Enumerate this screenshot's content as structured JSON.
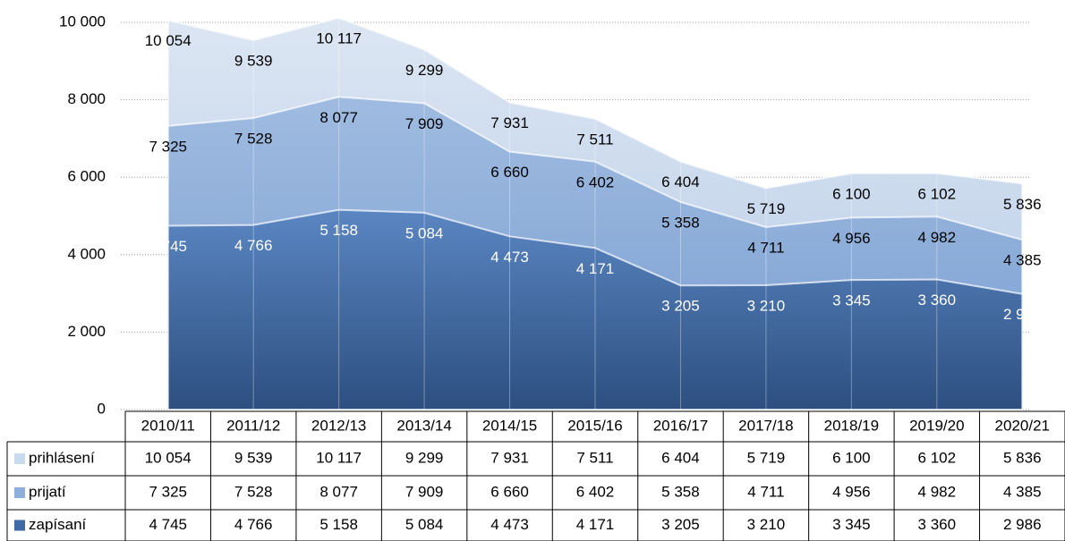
{
  "chart_data": {
    "type": "area",
    "categories": [
      "2010/11",
      "2011/12",
      "2012/13",
      "2013/14",
      "2014/15",
      "2015/16",
      "2016/17",
      "2017/18",
      "2018/19",
      "2019/20",
      "2020/21"
    ],
    "series": [
      {
        "name": "prihlásení",
        "color": "#c9d9ee",
        "values": [
          10054,
          9539,
          10117,
          9299,
          7931,
          7511,
          6404,
          5719,
          6100,
          6102,
          5836
        ],
        "value_labels": [
          "10 054",
          "9 539",
          "10 117",
          "9 299",
          "7 931",
          "7 511",
          "6 404",
          "5 719",
          "6 100",
          "6 102",
          "5 836"
        ]
      },
      {
        "name": "prijatí",
        "color": "#8eaedb",
        "values": [
          7325,
          7528,
          8077,
          7909,
          6660,
          6402,
          5358,
          4711,
          4956,
          4982,
          4385
        ],
        "value_labels": [
          "7 325",
          "7 528",
          "8 077",
          "7 909",
          "6 660",
          "6 402",
          "5 358",
          "4 711",
          "4 956",
          "4 982",
          "4 385"
        ]
      },
      {
        "name": "zapísaní",
        "color": "#3f6aa6",
        "values": [
          4745,
          4766,
          5158,
          5084,
          4473,
          4171,
          3205,
          3210,
          3345,
          3360,
          2986
        ],
        "value_labels": [
          "4 745",
          "4 766",
          "5 158",
          "5 084",
          "4 473",
          "4 171",
          "3 205",
          "3 210",
          "3 345",
          "3 360",
          "2 986"
        ]
      }
    ],
    "ylim": [
      0,
      10000
    ],
    "yticks": [
      0,
      {
        "value": 2000,
        "label": "2 000"
      },
      {
        "value": 4000,
        "label": "4 000"
      },
      {
        "value": 6000,
        "label": "6 000"
      },
      {
        "value": 8000,
        "label": "8 000"
      },
      {
        "value": 10000,
        "label": "10 000"
      }
    ],
    "grid": true
  }
}
